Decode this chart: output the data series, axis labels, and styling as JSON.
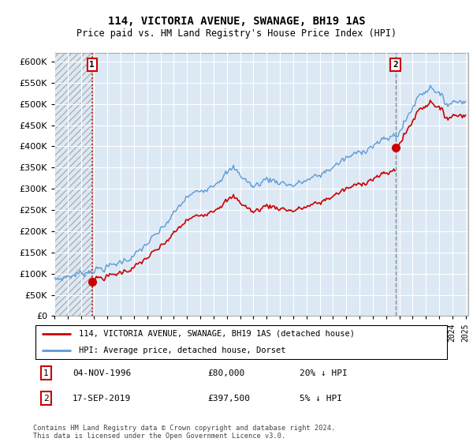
{
  "title": "114, VICTORIA AVENUE, SWANAGE, BH19 1AS",
  "subtitle": "Price paid vs. HM Land Registry's House Price Index (HPI)",
  "hpi_label": "HPI: Average price, detached house, Dorset",
  "property_label": "114, VICTORIA AVENUE, SWANAGE, BH19 1AS (detached house)",
  "sale1_date": "04-NOV-1996",
  "sale1_price": 80000,
  "sale1_pct": "20% ↓ HPI",
  "sale2_date": "17-SEP-2019",
  "sale2_price": 397500,
  "sale2_pct": "5% ↓ HPI",
  "footer": "Contains HM Land Registry data © Crown copyright and database right 2024.\nThis data is licensed under the Open Government Licence v3.0.",
  "ylim": [
    0,
    620000
  ],
  "yticks": [
    0,
    50000,
    100000,
    150000,
    200000,
    250000,
    300000,
    350000,
    400000,
    450000,
    500000,
    550000,
    600000
  ],
  "sale1_year": 1996.833,
  "sale2_year": 2019.708,
  "background_color": "#ffffff",
  "plot_bg_color": "#dce9f5",
  "hpi_color": "#5b9bd5",
  "property_color": "#cc0000",
  "grid_color": "#ffffff",
  "hatch_color": "#b0b0b0"
}
